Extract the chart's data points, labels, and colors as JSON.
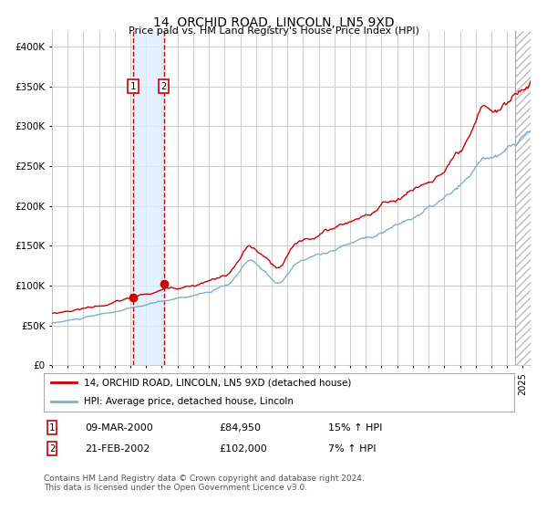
{
  "title": "14, ORCHID ROAD, LINCOLN, LN5 9XD",
  "subtitle": "Price paid vs. HM Land Registry's House Price Index (HPI)",
  "legend_line1": "14, ORCHID ROAD, LINCOLN, LN5 9XD (detached house)",
  "legend_line2": "HPI: Average price, detached house, Lincoln",
  "transaction1_date": "09-MAR-2000",
  "transaction1_price": "£84,950",
  "transaction1_hpi": "15% ↑ HPI",
  "transaction2_date": "21-FEB-2002",
  "transaction2_price": "£102,000",
  "transaction2_hpi": "7% ↑ HPI",
  "footer": "Contains HM Land Registry data © Crown copyright and database right 2024.\nThis data is licensed under the Open Government Licence v3.0.",
  "ylim": [
    0,
    420000
  ],
  "yticks": [
    0,
    50000,
    100000,
    150000,
    200000,
    250000,
    300000,
    350000,
    400000
  ],
  "red_color": "#cc0000",
  "blue_color": "#7ab0d4",
  "background_color": "#ffffff",
  "grid_color": "#cccccc",
  "hatch_color": "#bbbbbb",
  "shade_color": "#ddeeff",
  "marker1_date_num": 2000.18,
  "marker2_date_num": 2002.13,
  "vline1_date_num": 2000.18,
  "vline2_date_num": 2002.13,
  "shade_start": 2000.18,
  "shade_end": 2002.13,
  "xmin": 1995.0,
  "xmax": 2025.5,
  "last_vline": 2024.5,
  "marker1_value": 84950,
  "marker2_value": 102000,
  "start_year": 1995.0,
  "end_year": 2025.5
}
